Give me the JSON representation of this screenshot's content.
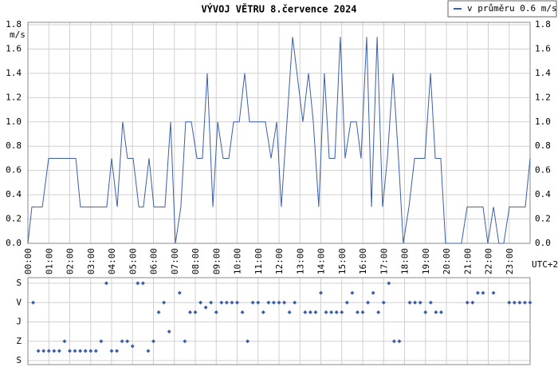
{
  "chart_data": [
    {
      "type": "line",
      "title": "VÝVOJ VĚTRU  8.července 2024",
      "y_unit_label": "m/s",
      "x_axis_note": "UTC+2",
      "right_axis": true,
      "grid": true,
      "legend": "top-right",
      "xlim": [
        0,
        24
      ],
      "xticks": [
        {
          "value": 0,
          "label": "00:00"
        },
        {
          "value": 1,
          "label": "01:00"
        },
        {
          "value": 2,
          "label": "02:00"
        },
        {
          "value": 3,
          "label": "03:00"
        },
        {
          "value": 4,
          "label": "04:00"
        },
        {
          "value": 5,
          "label": "05:00"
        },
        {
          "value": 6,
          "label": "06:00"
        },
        {
          "value": 7,
          "label": "07:00"
        },
        {
          "value": 8,
          "label": "08:00"
        },
        {
          "value": 9,
          "label": "09:00"
        },
        {
          "value": 10,
          "label": "10:00"
        },
        {
          "value": 11,
          "label": "11:00"
        },
        {
          "value": 12,
          "label": "12:00"
        },
        {
          "value": 13,
          "label": "13:00"
        },
        {
          "value": 14,
          "label": "14:00"
        },
        {
          "value": 15,
          "label": "15:00"
        },
        {
          "value": 16,
          "label": "16:00"
        },
        {
          "value": 17,
          "label": "17:00"
        },
        {
          "value": 18,
          "label": "18:00"
        },
        {
          "value": 19,
          "label": "19:00"
        },
        {
          "value": 20,
          "label": "20:00"
        },
        {
          "value": 21,
          "label": "21:00"
        },
        {
          "value": 22,
          "label": "22:00"
        },
        {
          "value": 23,
          "label": "23:00"
        }
      ],
      "ylim": [
        0,
        1.8
      ],
      "yticks": [
        {
          "value": 0,
          "label": "0.0"
        },
        0.2,
        0.4,
        0.6,
        0.8,
        {
          "value": 1,
          "label": "1.0"
        },
        1.2,
        1.4,
        1.6,
        1.8
      ],
      "series": [
        {
          "name": "v průměru 0.6 m/s",
          "color": "#3a5fa8",
          "x": [
            0,
            0.19,
            0.69,
            0.99,
            2.29,
            2.51,
            3.77,
            4.0,
            4.27,
            4.53,
            4.76,
            5.03,
            5.3,
            5.52,
            5.79,
            6.02,
            6.55,
            6.82,
            7.05,
            7.31,
            7.54,
            7.81,
            8.08,
            8.34,
            8.57,
            8.84,
            9.07,
            9.33,
            9.6,
            9.83,
            10.1,
            10.36,
            10.59,
            11.35,
            11.62,
            11.89,
            12.11,
            12.38,
            12.65,
            13.14,
            13.41,
            13.64,
            13.9,
            14.17,
            14.4,
            14.67,
            14.93,
            15.16,
            15.43,
            15.7,
            15.92,
            16.19,
            16.42,
            16.69,
            16.95,
            17.18,
            17.45,
            17.71,
            17.94,
            18.21,
            18.48,
            18.97,
            19.24,
            19.47,
            19.73,
            19.96,
            20.72,
            20.99,
            21.75,
            21.98,
            22.25,
            22.51,
            22.74,
            23.01,
            23.77,
            24.0
          ],
          "values": [
            0,
            0.3,
            0.3,
            0.7,
            0.7,
            0.3,
            0.3,
            0.7,
            0.3,
            1.0,
            0.7,
            0.7,
            0.3,
            0.3,
            0.7,
            0.3,
            0.3,
            1.0,
            0,
            0.3,
            1.0,
            1.0,
            0.7,
            0.7,
            1.4,
            0.3,
            1.0,
            0.7,
            0.7,
            1.0,
            1.0,
            1.4,
            1.0,
            1.0,
            0.7,
            1.0,
            0.3,
            1.0,
            1.7,
            1.0,
            1.4,
            1.0,
            0.3,
            1.4,
            0.7,
            0.7,
            1.7,
            0.7,
            1.0,
            1.0,
            0.7,
            1.7,
            0.3,
            1.7,
            0.3,
            0.7,
            1.4,
            0.7,
            0,
            0.3,
            0.7,
            0.7,
            1.4,
            0.7,
            0.7,
            0,
            0,
            0.3,
            0.3,
            0,
            0.3,
            0,
            0,
            0.3,
            0.3,
            0.7
          ]
        }
      ]
    },
    {
      "type": "scatter",
      "grid": true,
      "color": "#3a5fa8",
      "xlim": [
        0,
        24
      ],
      "ylim": [
        0,
        360
      ],
      "y_inverted": true,
      "yticks": [
        {
          "value": 0,
          "label": "S"
        },
        {
          "value": 90,
          "label": "V"
        },
        {
          "value": 180,
          "label": "J"
        },
        {
          "value": 270,
          "label": "Z"
        },
        {
          "value": 360,
          "label": "S"
        }
      ],
      "x": [
        0.25,
        0.5,
        0.75,
        1,
        1.25,
        1.5,
        1.75,
        2,
        2.25,
        2.5,
        2.75,
        3,
        3.25,
        3.5,
        3.75,
        4,
        4.25,
        4.5,
        4.75,
        5,
        5.25,
        5.5,
        5.75,
        6,
        6.25,
        6.5,
        6.75,
        7.25,
        7.5,
        7.75,
        8,
        8.25,
        8.5,
        8.75,
        9,
        9.25,
        9.5,
        9.75,
        10,
        10.25,
        10.5,
        10.75,
        11,
        11.25,
        11.5,
        11.75,
        12,
        12.25,
        12.5,
        12.75,
        13.25,
        13.5,
        13.75,
        14,
        14.25,
        14.5,
        14.75,
        15,
        15.25,
        15.5,
        15.75,
        16,
        16.25,
        16.5,
        16.75,
        17,
        17.25,
        17.5,
        17.75,
        18.25,
        18.5,
        18.75,
        19,
        19.25,
        19.5,
        19.75,
        21,
        21.25,
        21.5,
        21.75,
        22.25,
        23,
        23.25,
        23.5,
        23.75,
        24
      ],
      "values": [
        90,
        315,
        315,
        315,
        315,
        315,
        270,
        315,
        315,
        315,
        315,
        315,
        315,
        270,
        0,
        315,
        315,
        270,
        270,
        292.5,
        0,
        0,
        315,
        270,
        135,
        90,
        225,
        45,
        270,
        135,
        135,
        90,
        112.5,
        90,
        135,
        90,
        90,
        90,
        90,
        135,
        270,
        90,
        90,
        135,
        90,
        90,
        90,
        90,
        135,
        90,
        135,
        135,
        135,
        45,
        135,
        135,
        135,
        135,
        90,
        45,
        135,
        135,
        90,
        45,
        135,
        90,
        0,
        270,
        270,
        90,
        90,
        90,
        135,
        90,
        135,
        135,
        90,
        90,
        45,
        45,
        45,
        90,
        90,
        90,
        90,
        90
      ]
    }
  ]
}
